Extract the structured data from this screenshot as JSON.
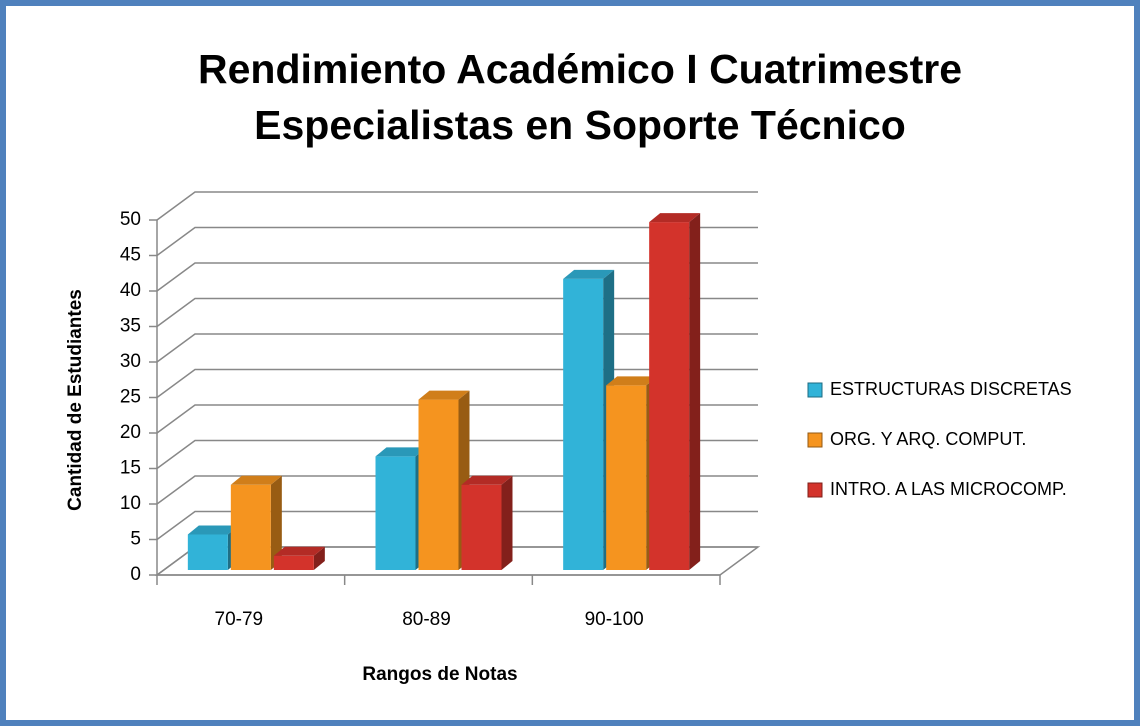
{
  "chart_data": {
    "type": "bar3d",
    "title": "Rendimiento Académico I Cuatrimestre",
    "subtitle": "Especialistas en Soporte Técnico",
    "x_label": "Rangos de Notas",
    "y_label": "Cantidad de Estudiantes",
    "categories": [
      "70-79",
      "80-89",
      "90-100"
    ],
    "series": [
      {
        "name": "ESTRUCTURAS DISCRETAS",
        "color": "#31b3d8",
        "values": [
          5,
          16,
          41
        ]
      },
      {
        "name": "ORG. Y ARQ. COMPUT.",
        "color": "#f5941f",
        "values": [
          12,
          24,
          26
        ]
      },
      {
        "name": "INTRO. A LAS MICROCOMP.",
        "color": "#d3332b",
        "values": [
          2,
          12,
          49
        ]
      }
    ],
    "ylim": [
      0,
      50
    ],
    "yticks": [
      0,
      5,
      10,
      15,
      20,
      25,
      30,
      35,
      40,
      45,
      50
    ],
    "grid": true,
    "legend": "right"
  }
}
